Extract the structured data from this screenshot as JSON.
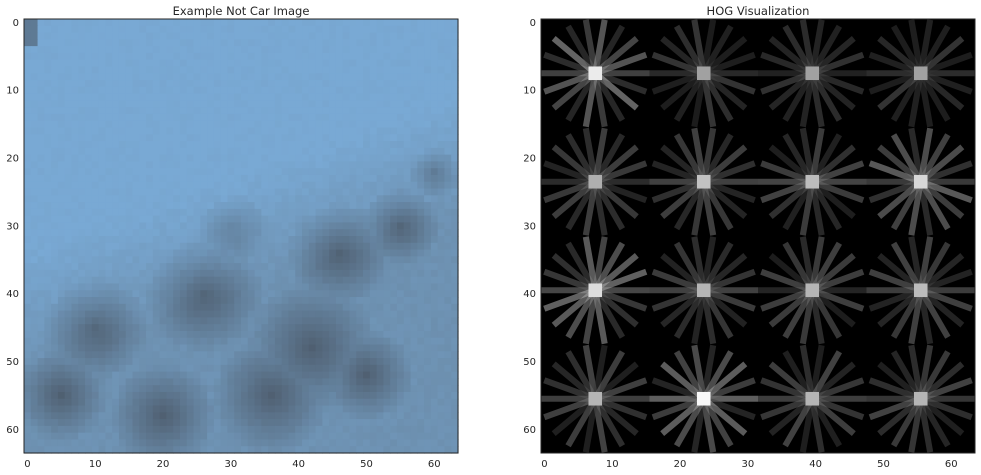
{
  "chart_data": [
    {
      "type": "image",
      "title": "Example Not Car Image",
      "xlabel": "",
      "ylabel": "",
      "xlim": [
        0,
        63
      ],
      "ylim": [
        63,
        0
      ],
      "xticks": [
        0,
        10,
        20,
        30,
        40,
        50,
        60
      ],
      "yticks": [
        0,
        10,
        20,
        30,
        40,
        50,
        60
      ],
      "image_size": [
        64,
        64
      ],
      "content": "pixelated blue-gray 64x64 image, lighter sky blue at top, darker textured gray region across the bottom half",
      "colors": {
        "light": "#79a9d4",
        "mid": "#6a8aa7",
        "dark": "#4c5a6a"
      }
    },
    {
      "type": "image",
      "title": "HOG Visualization",
      "xlabel": "",
      "ylabel": "",
      "xlim": [
        0,
        63
      ],
      "ylim": [
        63,
        0
      ],
      "xticks": [
        0,
        10,
        20,
        30,
        40,
        50,
        60
      ],
      "yticks": [
        0,
        10,
        20,
        30,
        40,
        50,
        60
      ],
      "image_size": [
        64,
        64
      ],
      "grid_cells": [
        4,
        4
      ],
      "content": "grayscale HOG star patterns on black background, one per 16x16 cell",
      "cell_strength": [
        [
          0.85,
          0.3,
          0.3,
          0.3
        ],
        [
          0.4,
          0.55,
          0.5,
          0.7
        ],
        [
          0.75,
          0.45,
          0.45,
          0.5
        ],
        [
          0.45,
          0.95,
          0.45,
          0.45
        ]
      ],
      "colors": {
        "background": "#000000",
        "line": "#ffffff"
      }
    }
  ]
}
